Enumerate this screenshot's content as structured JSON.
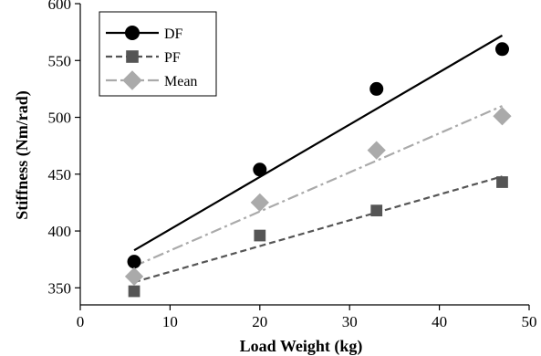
{
  "chart_data": {
    "type": "scatter",
    "title": "",
    "xlabel": "Load Weight (kg)",
    "ylabel": "Stiffness (Nm/rad)",
    "xlim": [
      0,
      50
    ],
    "ylim": [
      335,
      600
    ],
    "xticks": [
      0,
      10,
      20,
      30,
      40,
      50
    ],
    "yticks": [
      350,
      400,
      450,
      500,
      550,
      600
    ],
    "grid": false,
    "legend_position": "top-left",
    "series": [
      {
        "name": "DF",
        "marker": "circle",
        "color": "#000000",
        "line_style": "solid",
        "x": [
          6,
          20,
          33,
          47
        ],
        "y": [
          373,
          454,
          525,
          560
        ],
        "trend": {
          "x": [
            6,
            47
          ],
          "y": [
            383,
            572
          ]
        }
      },
      {
        "name": "PF",
        "marker": "square",
        "color": "#555555",
        "line_style": "dashed",
        "x": [
          6,
          20,
          33,
          47
        ],
        "y": [
          347,
          396,
          418,
          443
        ],
        "trend": {
          "x": [
            6,
            47
          ],
          "y": [
            355,
            448
          ]
        }
      },
      {
        "name": "Mean",
        "marker": "diamond",
        "color": "#aaaaaa",
        "line_style": "dash-dot",
        "x": [
          6,
          20,
          33,
          47
        ],
        "y": [
          360,
          425,
          471,
          501
        ],
        "trend": {
          "x": [
            6,
            47
          ],
          "y": [
            369,
            510
          ]
        }
      }
    ]
  }
}
